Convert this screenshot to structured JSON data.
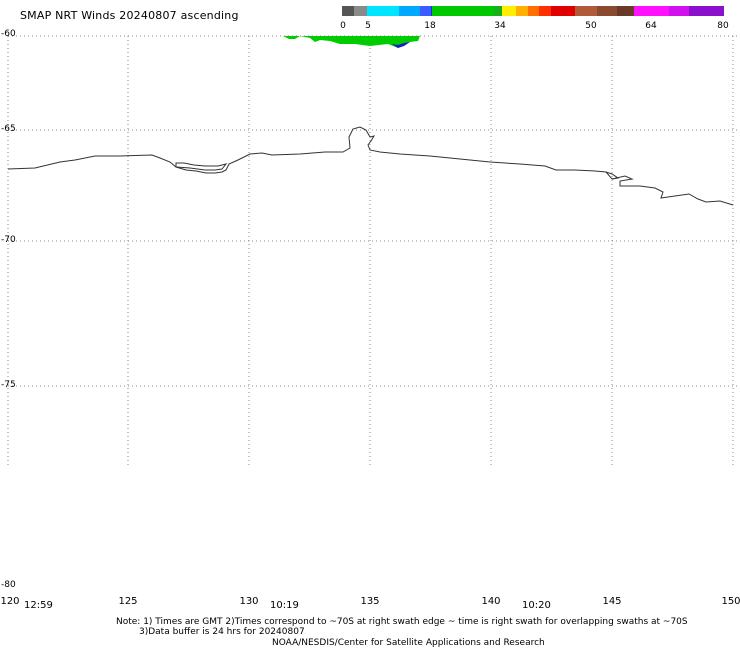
{
  "title": "SMAP NRT Winds 20240807 ascending",
  "colorbar": {
    "labels": [
      "0",
      "5",
      "18",
      "34",
      "50",
      "64",
      "80"
    ],
    "colors": [
      "#555555",
      "#8a8a8a",
      "#00e5ff",
      "#00a8ff",
      "#3a5bff",
      "#1f2fd0",
      "#00c800",
      "#18b018",
      "#ffee00",
      "#ffb000",
      "#ff7000",
      "#ff3000",
      "#e00000",
      "#b05a3a",
      "#8a4a30",
      "#6a3a28",
      "#ff10ff",
      "#d010ee",
      "#8a10cc"
    ]
  },
  "map": {
    "lat_labels": [
      "-60",
      "-65",
      "-70",
      "-75",
      "-80"
    ],
    "lon_labels": [
      "125",
      "130",
      "135",
      "140",
      "145",
      "150"
    ],
    "corner_lon": "120",
    "times": [
      "12:59",
      "10:19",
      "10:20"
    ],
    "extent": {
      "lon": [
        120,
        150
      ],
      "lat": [
        -80,
        -60
      ]
    },
    "colors": {
      "coast": "#333333",
      "grid": "#888888",
      "wind_green": "#00cc00",
      "wind_blue": "#1a1acc"
    }
  },
  "notes": {
    "line1": "Note: 1) Times are GMT 2)Times correspond to ~70S at right swath edge ~ time is right swath for overlapping swaths at ~70S",
    "line2": "3)Data buffer is 24 hrs for 20240807",
    "line3": "NOAA/NESDIS/Center for Satellite Applications and Research"
  }
}
